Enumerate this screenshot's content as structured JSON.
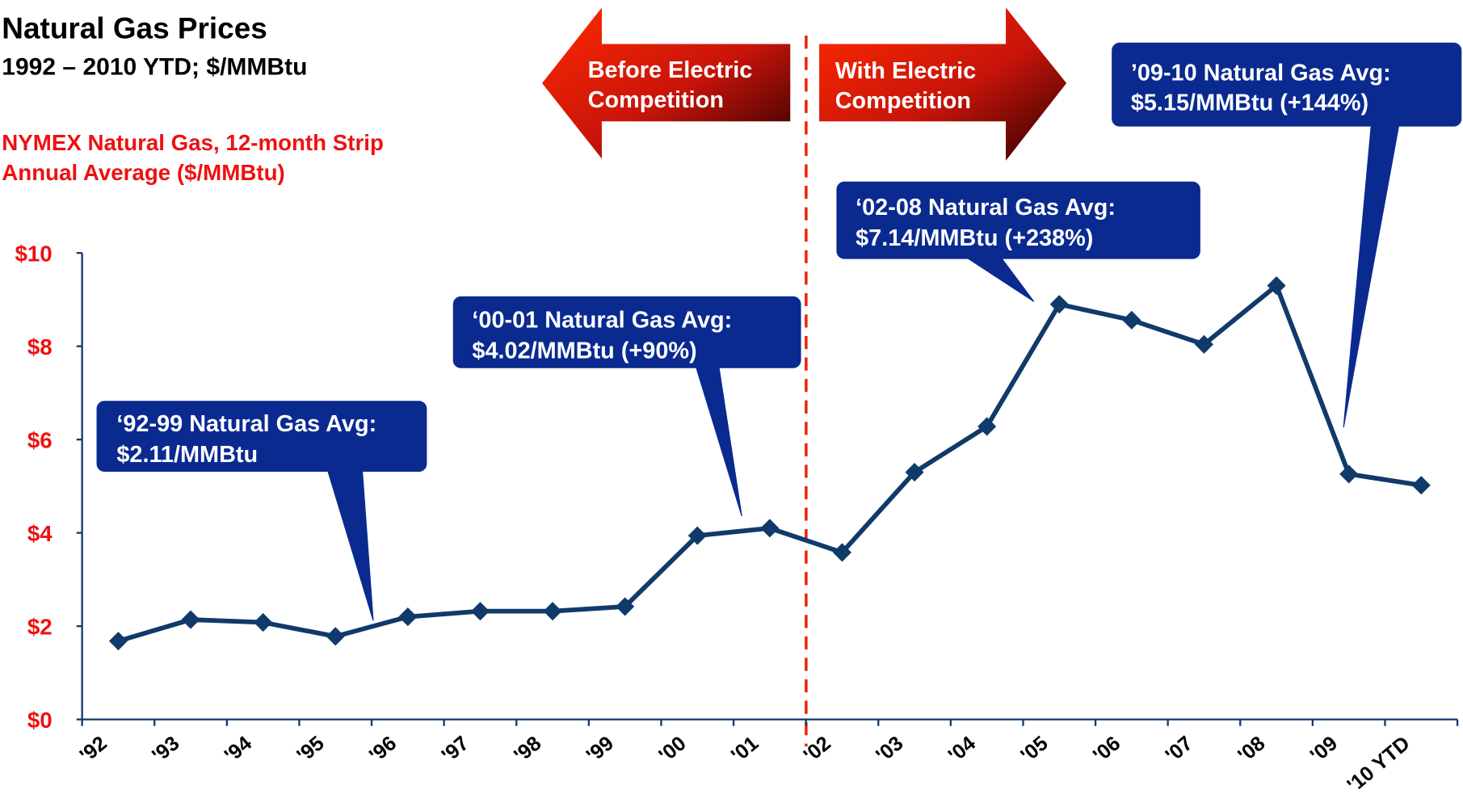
{
  "chart_data": {
    "type": "line",
    "title": "Natural Gas Prices",
    "subtitle": "1992 – 2010 YTD; $/MMBtu",
    "y_label": [
      "NYMEX Natural Gas, 12-month Strip",
      "Annual Average ($/MMBtu)"
    ],
    "categories": [
      "'92",
      "'93",
      "'94",
      "'95",
      "'96",
      "'97",
      "'98",
      "'99",
      "'00",
      "'01",
      "'02",
      "'03",
      "'04",
      "'05",
      "'06",
      "'07",
      "'08",
      "'09",
      "'10 YTD"
    ],
    "values": [
      1.68,
      2.14,
      2.08,
      1.78,
      2.2,
      2.32,
      2.32,
      2.42,
      3.94,
      4.1,
      3.58,
      5.3,
      6.28,
      8.9,
      8.56,
      8.04,
      9.3,
      5.26,
      5.02
    ],
    "color": "#103a6a",
    "ylim": [
      0,
      10
    ],
    "yticks": [
      {
        "value": 0,
        "label": "$0"
      },
      {
        "value": 2,
        "label": "$2"
      },
      {
        "value": 4,
        "label": "$4"
      },
      {
        "value": 6,
        "label": "$6"
      },
      {
        "value": 8,
        "label": "$8"
      },
      {
        "value": 10,
        "label": "$10"
      }
    ],
    "banners": [
      {
        "lines": [
          "Before Electric",
          "Competition"
        ]
      },
      {
        "lines": [
          "With Electric",
          "Competition"
        ]
      }
    ],
    "annotations": [
      {
        "lines": [
          "‘92-99 Natural Gas Avg:",
          "$2.11/MMBtu"
        ]
      },
      {
        "lines": [
          "‘00-01 Natural Gas Avg:",
          "$4.02/MMBtu (+90%)"
        ]
      },
      {
        "lines": [
          "‘02-08 Natural Gas Avg:",
          "$7.14/MMBtu (+238%)"
        ]
      },
      {
        "lines": [
          "’09-10 Natural Gas Avg:",
          "$5.15/MMBtu (+144%)"
        ]
      }
    ]
  }
}
